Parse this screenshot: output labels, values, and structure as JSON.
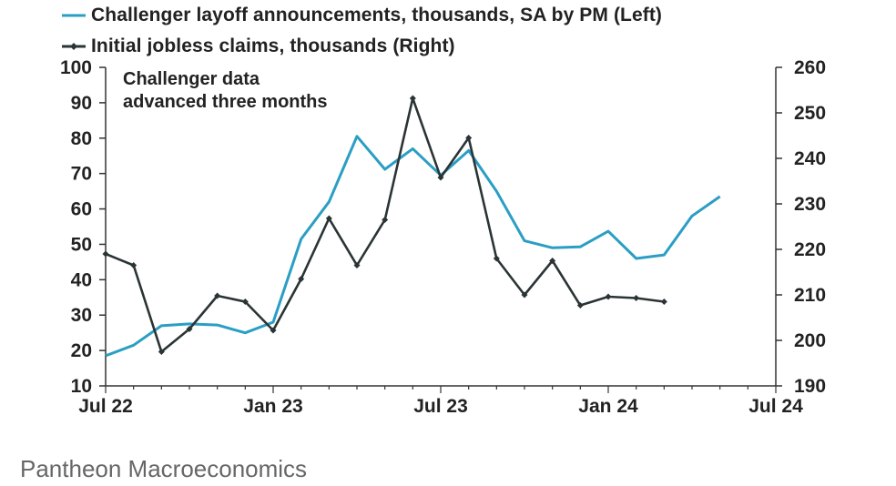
{
  "chart_data": {
    "type": "line",
    "annotation": [
      "Challenger data",
      "advanced three months"
    ],
    "x_ticks": [
      "Jul 22",
      "Jan 23",
      "Jul 23",
      "Jan 24",
      "Jul 24"
    ],
    "left_axis": {
      "ylim": [
        10,
        100
      ],
      "ticks": [
        10,
        20,
        30,
        40,
        50,
        60,
        70,
        80,
        90,
        100
      ]
    },
    "right_axis": {
      "ylim": [
        190,
        260
      ],
      "ticks": [
        190,
        200,
        210,
        220,
        230,
        240,
        250,
        260
      ]
    },
    "grid": false,
    "legend_position": "top-left",
    "series": [
      {
        "name": "Challenger layoff announcements, thousands, SA by PM (Left)",
        "axis": "left",
        "color": "#2b9ec4",
        "x": [
          "2022-07",
          "2022-08",
          "2022-09",
          "2022-10",
          "2022-11",
          "2022-12",
          "2023-01",
          "2023-02",
          "2023-03",
          "2023-04",
          "2023-05",
          "2023-06",
          "2023-07",
          "2023-08",
          "2023-09",
          "2023-10",
          "2023-11",
          "2023-12",
          "2024-01",
          "2024-02",
          "2024-03",
          "2024-04",
          "2024-05"
        ],
        "values": [
          18.5,
          21.5,
          27,
          27.5,
          27.2,
          25,
          28,
          51.5,
          62,
          80.5,
          71.2,
          77,
          69.5,
          76.5,
          65,
          51,
          49,
          49.3,
          53.7,
          46,
          47,
          58,
          63.5
        ]
      },
      {
        "name": "Initial jobless claims, thousands (Right)",
        "axis": "right",
        "color": "#2b3435",
        "x": [
          "2022-07",
          "2022-08",
          "2022-09",
          "2022-10",
          "2022-11",
          "2022-12",
          "2023-01",
          "2023-02",
          "2023-03",
          "2023-04",
          "2023-05",
          "2023-06",
          "2023-07",
          "2023-08",
          "2023-09",
          "2023-10",
          "2023-11",
          "2023-12",
          "2024-01",
          "2024-02",
          "2024-03"
        ],
        "values": [
          219,
          216.5,
          197.5,
          202.5,
          209.8,
          208.5,
          202.2,
          213.5,
          226.8,
          216.5,
          226.5,
          253.2,
          235.8,
          244.5,
          218,
          210,
          217.5,
          207.7,
          209.6,
          209.3,
          208.5
        ]
      }
    ]
  },
  "footer": {
    "source": "Pantheon Macroeconomics"
  }
}
